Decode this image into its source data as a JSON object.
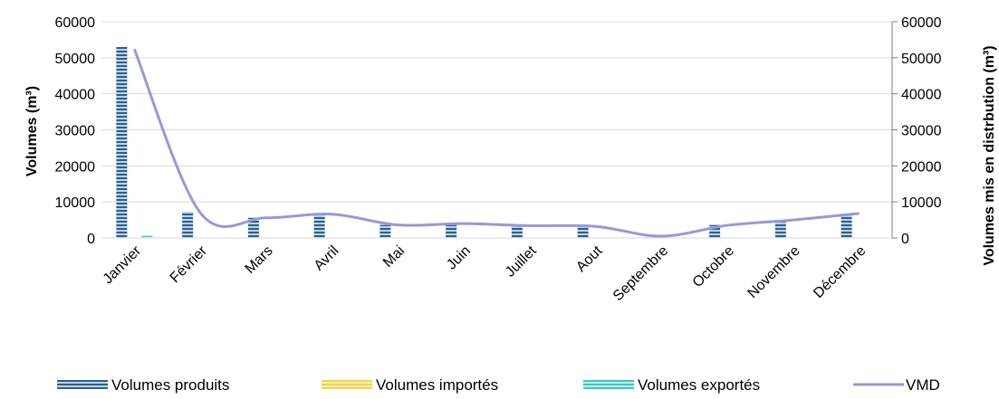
{
  "chart_data": {
    "type": "bar",
    "categories": [
      "Janvier",
      "Février",
      "Mars",
      "Avril",
      "Mai",
      "Juin",
      "Juillet",
      "Aout",
      "Septembre",
      "Octobre",
      "Novembre",
      "Décembre"
    ],
    "series": [
      {
        "name": "Volumes produits",
        "type": "bar",
        "axis": "left",
        "color": "#2e5f8a",
        "values": [
          53000,
          7300,
          5600,
          6400,
          3600,
          3600,
          3200,
          3200,
          200,
          3600,
          5000,
          6400
        ]
      },
      {
        "name": "Volumes importés",
        "type": "bar",
        "axis": "left",
        "color": "#f2d44e",
        "values": [
          0,
          0,
          0,
          0,
          0,
          0,
          0,
          0,
          0,
          0,
          0,
          0
        ]
      },
      {
        "name": "Volumes exportés",
        "type": "bar",
        "axis": "left",
        "color": "#3cc8c0",
        "values": [
          600,
          0,
          0,
          0,
          0,
          0,
          0,
          0,
          0,
          0,
          0,
          0
        ]
      },
      {
        "name": "VMD",
        "type": "line",
        "axis": "right",
        "color": "#9999d6",
        "values": [
          52400,
          7000,
          5600,
          6600,
          3600,
          4000,
          3400,
          3200,
          500,
          3500,
          5000,
          6800
        ]
      }
    ],
    "ylabel": "Volumes (m³)",
    "y2label": "Volumes mis en distrbution (m³)",
    "ylim": [
      0,
      60000
    ],
    "y2lim": [
      0,
      60000
    ],
    "yticks": [
      "0",
      "10000",
      "20000",
      "30000",
      "40000",
      "50000",
      "60000"
    ],
    "y2ticks": [
      "0",
      "10000",
      "20000",
      "30000",
      "40000",
      "50000",
      "60000"
    ],
    "grid": true,
    "legend": "bottom"
  }
}
